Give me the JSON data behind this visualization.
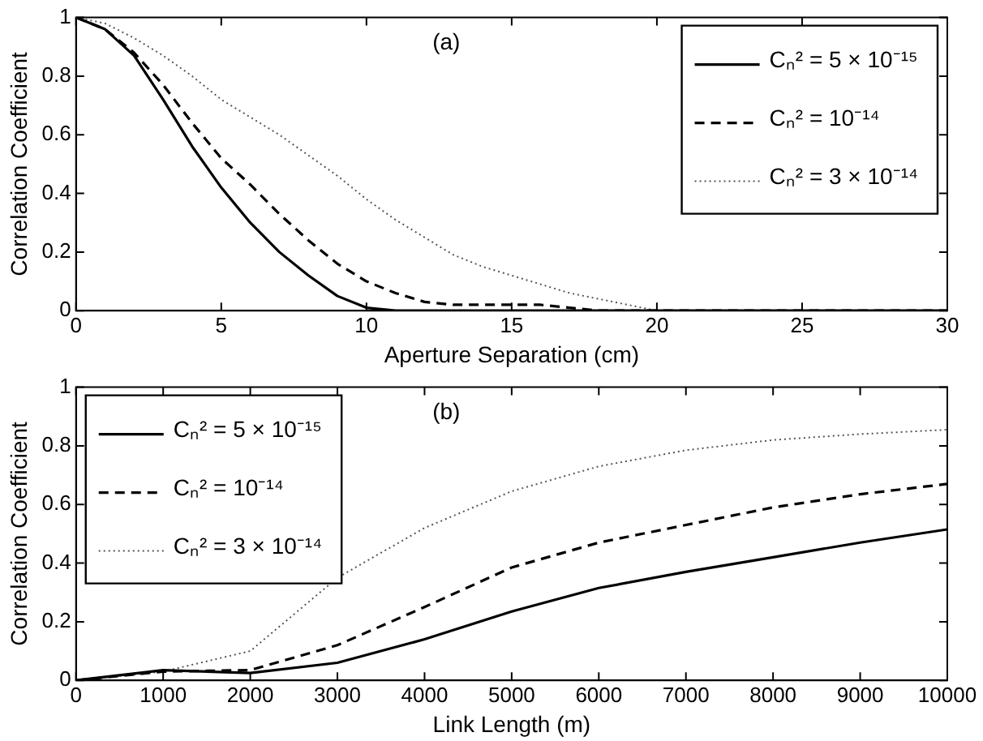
{
  "chart_data": [
    {
      "type": "line",
      "xlabel": "Aperture Separation (cm)",
      "ylabel": "Correlation Coefficient",
      "annotations": [
        "(a)"
      ],
      "legend": "top right",
      "grid": false,
      "marker": "none",
      "xlim": [
        0,
        30
      ],
      "xticks": [
        0,
        5,
        10,
        15,
        20,
        25,
        30
      ],
      "ylim": [
        0,
        1
      ],
      "yticks": [
        0,
        0.2,
        0.4,
        0.6,
        0.8,
        1
      ],
      "x": [
        0,
        1,
        2,
        3,
        4,
        5,
        6,
        7,
        8,
        9,
        10,
        11,
        12,
        13,
        14,
        15,
        16,
        17,
        18,
        19,
        20,
        30
      ],
      "series": [
        {
          "name": "Cₙ² = 5 × 10⁻¹⁵",
          "color": "#000000",
          "line_style": "solid",
          "values": [
            1,
            0.96,
            0.87,
            0.72,
            0.56,
            0.42,
            0.3,
            0.2,
            0.12,
            0.05,
            0.01,
            0,
            0,
            0,
            0,
            0,
            0,
            0,
            0,
            0,
            0,
            0
          ]
        },
        {
          "name": "Cₙ² = 10⁻¹⁴",
          "color": "#000000",
          "line_style": "dashed",
          "values": [
            1,
            0.96,
            0.88,
            0.77,
            0.64,
            0.52,
            0.43,
            0.33,
            0.24,
            0.16,
            0.1,
            0.06,
            0.03,
            0.02,
            0.02,
            0.02,
            0.02,
            0.01,
            0,
            0,
            0,
            0
          ]
        },
        {
          "name": "Cₙ² = 3 × 10⁻¹⁴",
          "color": "#555555",
          "line_style": "dotted",
          "values": [
            1,
            0.98,
            0.93,
            0.87,
            0.8,
            0.72,
            0.66,
            0.6,
            0.53,
            0.46,
            0.38,
            0.31,
            0.25,
            0.19,
            0.15,
            0.12,
            0.09,
            0.06,
            0.04,
            0.02,
            0,
            0
          ]
        }
      ]
    },
    {
      "type": "line",
      "xlabel": "Link Length (m)",
      "ylabel": "Correlation Coefficient",
      "annotations": [
        "(b)"
      ],
      "legend": "top left",
      "grid": false,
      "marker": "none",
      "xlim": [
        0,
        10000
      ],
      "xticks": [
        0,
        1000,
        2000,
        3000,
        4000,
        5000,
        6000,
        7000,
        8000,
        9000,
        10000
      ],
      "ylim": [
        0,
        1
      ],
      "yticks": [
        0,
        0.2,
        0.4,
        0.6,
        0.8,
        1
      ],
      "x": [
        0,
        1000,
        2000,
        3000,
        4000,
        5000,
        6000,
        7000,
        8000,
        9000,
        10000
      ],
      "series": [
        {
          "name": "Cₙ² = 5 × 10⁻¹⁵",
          "color": "#000000",
          "line_style": "solid",
          "values": [
            0,
            0.035,
            0.025,
            0.06,
            0.14,
            0.235,
            0.315,
            0.37,
            0.42,
            0.47,
            0.515
          ]
        },
        {
          "name": "Cₙ² = 10⁻¹⁴",
          "color": "#000000",
          "line_style": "dashed",
          "values": [
            0,
            0.03,
            0.035,
            0.12,
            0.25,
            0.385,
            0.47,
            0.53,
            0.59,
            0.635,
            0.67
          ]
        },
        {
          "name": "Cₙ² = 3 × 10⁻¹⁴",
          "color": "#555555",
          "line_style": "dotted",
          "values": [
            0,
            0.03,
            0.1,
            0.35,
            0.52,
            0.645,
            0.73,
            0.785,
            0.82,
            0.84,
            0.855
          ]
        }
      ]
    }
  ]
}
